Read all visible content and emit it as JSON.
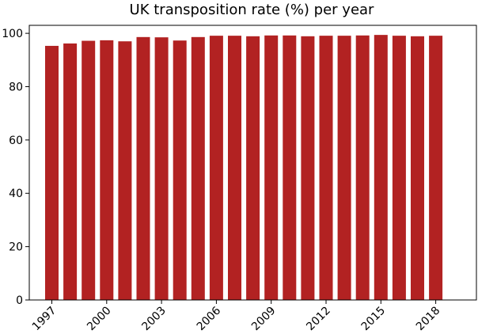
{
  "chart_data": {
    "type": "bar",
    "title": "UK transposition rate (%) per year",
    "xlabel": "",
    "ylabel": "",
    "categories": [
      "1997",
      "1998",
      "1999",
      "2000",
      "2001",
      "2002",
      "2003",
      "2004",
      "2005",
      "2006",
      "2007",
      "2008",
      "2009",
      "2010",
      "2011",
      "2012",
      "2013",
      "2014",
      "2015",
      "2016",
      "2017",
      "2018"
    ],
    "values": [
      95.3,
      96.2,
      97.2,
      97.4,
      97.0,
      98.6,
      98.5,
      97.3,
      98.6,
      99.1,
      99.1,
      98.9,
      99.2,
      99.2,
      98.9,
      99.1,
      99.1,
      99.2,
      99.4,
      99.1,
      98.9,
      99.1
    ],
    "xticks": [
      "1997",
      "2000",
      "2003",
      "2006",
      "2009",
      "2012",
      "2015",
      "2018"
    ],
    "yticks": [
      "0",
      "20",
      "40",
      "60",
      "80",
      "100"
    ],
    "ylim": [
      0,
      103
    ],
    "grid": false,
    "bar_color": "#b22222"
  }
}
